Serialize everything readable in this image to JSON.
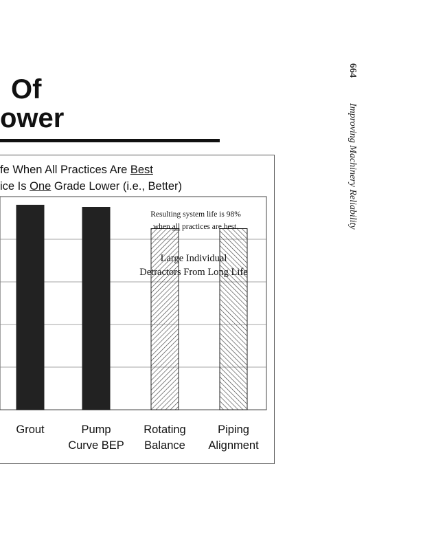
{
  "page": {
    "heading_line1": "Of",
    "heading_line2": "ower",
    "page_number": "664",
    "running_title": "Improving Machinery Reliability"
  },
  "chart_data": {
    "type": "bar",
    "title_line1_parts": [
      "fe When All Practices Are ",
      "Best"
    ],
    "title_line2_parts": [
      "ice Is ",
      "One",
      " Grade Lower (i.e., Better)"
    ],
    "categories": [
      [
        "Grout"
      ],
      [
        "Pump",
        "Curve BEP"
      ],
      [
        "Rotating",
        "Balance"
      ],
      [
        "Piping",
        "Alignment"
      ]
    ],
    "values": [
      98,
      97.5,
      92.5,
      92.5
    ],
    "bar_styles": [
      "solid",
      "solid",
      "hatch-back",
      "hatch-forward"
    ],
    "bar_colors": {
      "solid": "#222222",
      "hatch": "#444444"
    },
    "ylim": [
      50,
      100
    ],
    "grid": true,
    "annotations": {
      "note_line1": "Resulting system life is 98%",
      "note_line2_parts": [
        "when ",
        "all",
        " practices are best."
      ],
      "detractors_line1": "Large Individual",
      "detractors_line2": "Detractors From Long Life"
    }
  }
}
